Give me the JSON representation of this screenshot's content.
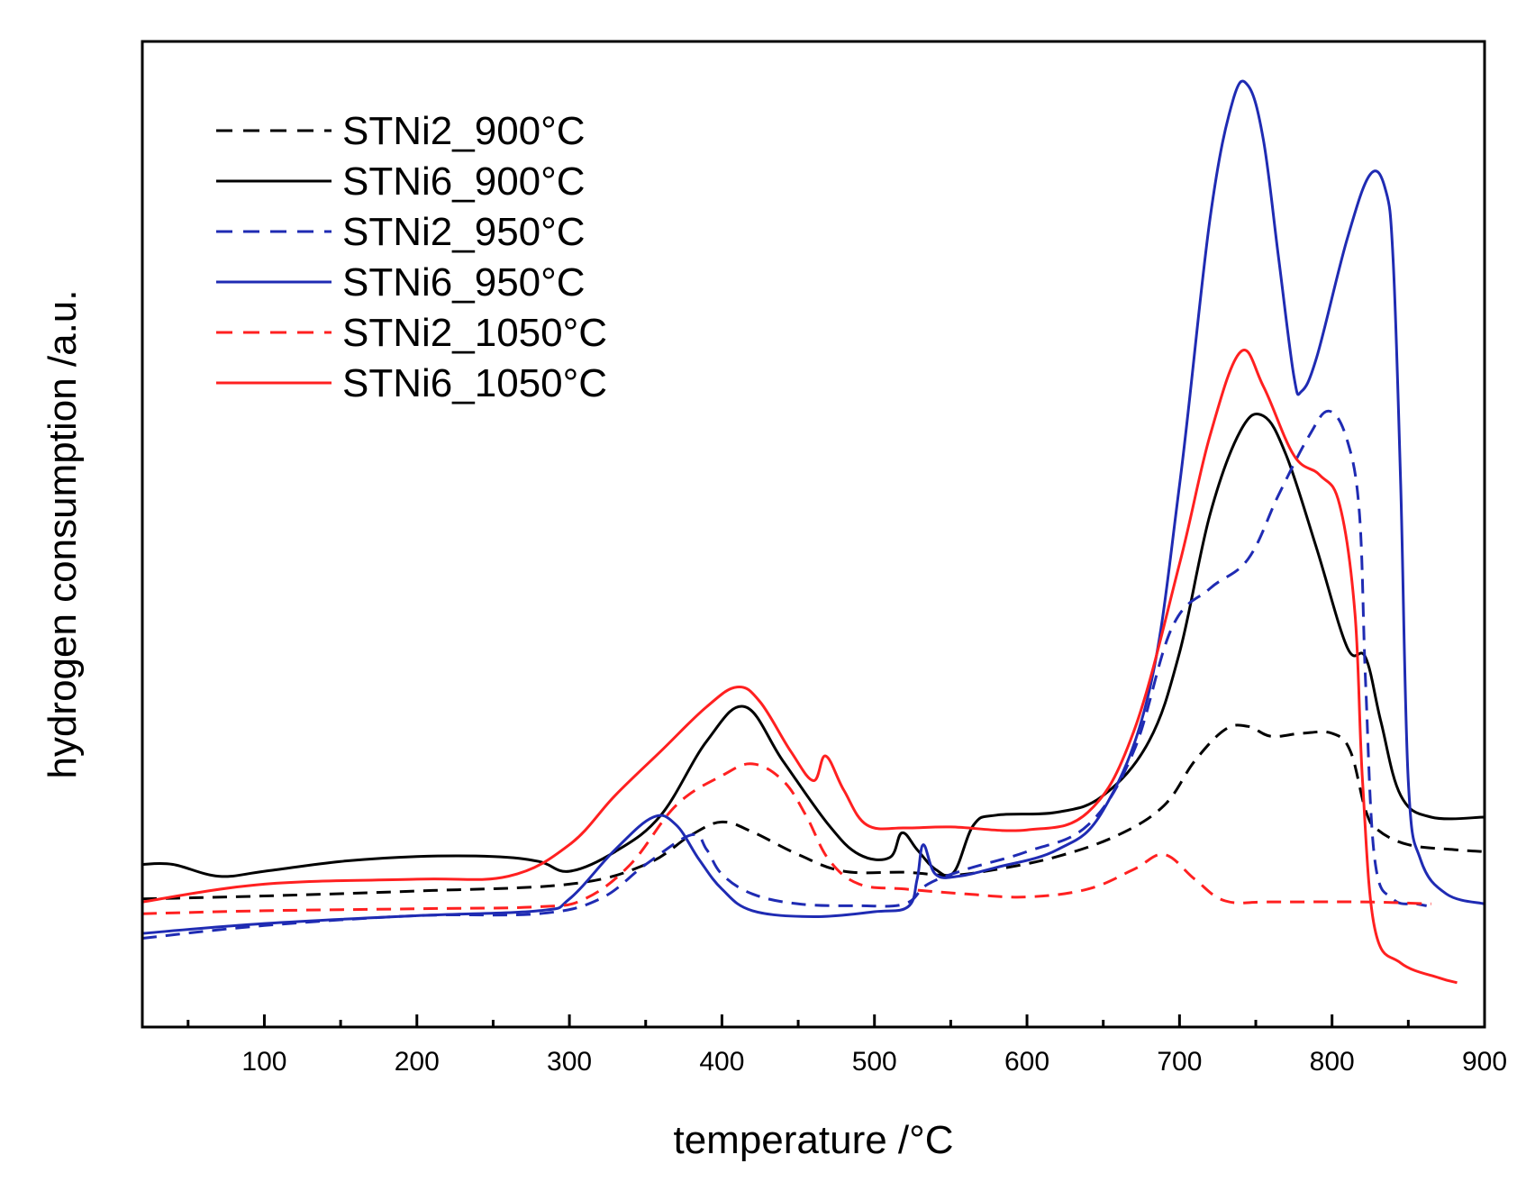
{
  "chart_data": {
    "type": "line",
    "title": "",
    "xlabel": "temperature /°C",
    "ylabel": "hydrogen consumption /a.u.",
    "xlim": [
      20,
      900
    ],
    "ylim": [
      0,
      100
    ],
    "xticks": [
      100,
      200,
      300,
      400,
      500,
      600,
      700,
      800,
      900
    ],
    "xticks_minor": [
      50,
      150,
      250,
      350,
      450,
      550,
      650,
      750,
      850
    ],
    "y_tick_labels": false,
    "grid": false,
    "legend_position": "top-left",
    "series": [
      {
        "name": "STNi2_900°C",
        "color": "#000000",
        "dash": "dashed",
        "points": [
          [
            20,
            13
          ],
          [
            100,
            13.3
          ],
          [
            200,
            13.8
          ],
          [
            300,
            14.5
          ],
          [
            350,
            16.5
          ],
          [
            380,
            19.5
          ],
          [
            400,
            20.8
          ],
          [
            420,
            19.8
          ],
          [
            450,
            17.5
          ],
          [
            480,
            15.8
          ],
          [
            520,
            15.7
          ],
          [
            550,
            15.4
          ],
          [
            580,
            16
          ],
          [
            620,
            17.3
          ],
          [
            660,
            19.5
          ],
          [
            690,
            22.5
          ],
          [
            710,
            27
          ],
          [
            730,
            30.2
          ],
          [
            745,
            30.5
          ],
          [
            760,
            29.5
          ],
          [
            780,
            29.8
          ],
          [
            800,
            29.8
          ],
          [
            812,
            28
          ],
          [
            822,
            22
          ],
          [
            830,
            20
          ],
          [
            850,
            18.5
          ],
          [
            880,
            18
          ],
          [
            900,
            17.8
          ]
        ]
      },
      {
        "name": "STNi6_900°C",
        "color": "#000000",
        "dash": "solid",
        "points": [
          [
            20,
            16.5
          ],
          [
            40,
            16.5
          ],
          [
            70,
            15.3
          ],
          [
            100,
            15.8
          ],
          [
            150,
            16.8
          ],
          [
            200,
            17.3
          ],
          [
            250,
            17.3
          ],
          [
            280,
            16.8
          ],
          [
            300,
            15.8
          ],
          [
            330,
            17.8
          ],
          [
            360,
            21.5
          ],
          [
            390,
            29
          ],
          [
            415,
            32.5
          ],
          [
            440,
            27
          ],
          [
            470,
            20.5
          ],
          [
            490,
            17.5
          ],
          [
            510,
            17.2
          ],
          [
            518,
            19.7
          ],
          [
            528,
            18
          ],
          [
            540,
            16
          ],
          [
            552,
            15.7
          ],
          [
            565,
            20.5
          ],
          [
            580,
            21.5
          ],
          [
            620,
            21.8
          ],
          [
            650,
            23.5
          ],
          [
            680,
            29
          ],
          [
            700,
            38
          ],
          [
            720,
            52
          ],
          [
            740,
            60.5
          ],
          [
            755,
            62
          ],
          [
            770,
            58
          ],
          [
            790,
            48.5
          ],
          [
            810,
            38.5
          ],
          [
            822,
            37.5
          ],
          [
            832,
            31
          ],
          [
            845,
            23.5
          ],
          [
            865,
            21.3
          ],
          [
            900,
            21.3
          ]
        ]
      },
      {
        "name": "STNi2_950°C",
        "color": "#1f2bb3",
        "dash": "dashed",
        "points": [
          [
            20,
            9
          ],
          [
            100,
            10.3
          ],
          [
            200,
            11.3
          ],
          [
            280,
            11.5
          ],
          [
            320,
            13
          ],
          [
            350,
            16.5
          ],
          [
            380,
            19.5
          ],
          [
            390,
            18
          ],
          [
            400,
            15.5
          ],
          [
            420,
            13.5
          ],
          [
            450,
            12.5
          ],
          [
            490,
            12.3
          ],
          [
            520,
            12.5
          ],
          [
            535,
            14.5
          ],
          [
            560,
            16
          ],
          [
            600,
            17.8
          ],
          [
            640,
            20.5
          ],
          [
            670,
            28
          ],
          [
            695,
            40.5
          ],
          [
            720,
            44.5
          ],
          [
            745,
            47.5
          ],
          [
            765,
            54
          ],
          [
            785,
            60
          ],
          [
            798,
            62.5
          ],
          [
            810,
            59.5
          ],
          [
            818,
            52
          ],
          [
            822,
            35
          ],
          [
            828,
            17
          ],
          [
            840,
            13
          ],
          [
            855,
            12.5
          ],
          [
            862,
            12.3
          ]
        ]
      },
      {
        "name": "STNi6_950°C",
        "color": "#1f2bb3",
        "dash": "solid",
        "points": [
          [
            20,
            9.5
          ],
          [
            100,
            10.5
          ],
          [
            200,
            11.3
          ],
          [
            280,
            11.8
          ],
          [
            300,
            13
          ],
          [
            330,
            18
          ],
          [
            355,
            21.3
          ],
          [
            370,
            20.5
          ],
          [
            385,
            17
          ],
          [
            400,
            14
          ],
          [
            420,
            11.8
          ],
          [
            460,
            11.2
          ],
          [
            500,
            11.7
          ],
          [
            522,
            12.2
          ],
          [
            528,
            15
          ],
          [
            532,
            18.5
          ],
          [
            540,
            15.5
          ],
          [
            555,
            15.3
          ],
          [
            580,
            16.2
          ],
          [
            620,
            18
          ],
          [
            650,
            22
          ],
          [
            680,
            34
          ],
          [
            700,
            55
          ],
          [
            720,
            82
          ],
          [
            735,
            94
          ],
          [
            745,
            95.5
          ],
          [
            755,
            90
          ],
          [
            765,
            78
          ],
          [
            775,
            66
          ],
          [
            780,
            64.5
          ],
          [
            790,
            68
          ],
          [
            810,
            80
          ],
          [
            825,
            86.5
          ],
          [
            835,
            85
          ],
          [
            840,
            78
          ],
          [
            845,
            55
          ],
          [
            850,
            25
          ],
          [
            858,
            17
          ],
          [
            875,
            13.5
          ],
          [
            900,
            12.5
          ]
        ]
      },
      {
        "name": "STNi2_1050°C",
        "color": "#ff2020",
        "dash": "dashed",
        "points": [
          [
            20,
            11.5
          ],
          [
            100,
            11.8
          ],
          [
            200,
            12
          ],
          [
            280,
            12.2
          ],
          [
            310,
            13
          ],
          [
            340,
            16.5
          ],
          [
            370,
            22.5
          ],
          [
            400,
            25.5
          ],
          [
            420,
            26.7
          ],
          [
            440,
            25
          ],
          [
            455,
            21.5
          ],
          [
            470,
            17
          ],
          [
            490,
            14.5
          ],
          [
            520,
            14
          ],
          [
            560,
            13.5
          ],
          [
            600,
            13.2
          ],
          [
            640,
            14
          ],
          [
            670,
            16
          ],
          [
            690,
            17.5
          ],
          [
            710,
            15
          ],
          [
            730,
            12.8
          ],
          [
            760,
            12.7
          ],
          [
            820,
            12.7
          ],
          [
            865,
            12.5
          ]
        ]
      },
      {
        "name": "STNi6_1050°C",
        "color": "#ff2020",
        "dash": "solid",
        "points": [
          [
            20,
            12.7
          ],
          [
            100,
            14.5
          ],
          [
            200,
            15
          ],
          [
            260,
            15.3
          ],
          [
            300,
            18.5
          ],
          [
            330,
            23.5
          ],
          [
            360,
            28
          ],
          [
            390,
            32.5
          ],
          [
            410,
            34.5
          ],
          [
            425,
            33
          ],
          [
            445,
            28
          ],
          [
            460,
            25
          ],
          [
            468,
            27.5
          ],
          [
            480,
            24
          ],
          [
            495,
            20.5
          ],
          [
            520,
            20.2
          ],
          [
            550,
            20.3
          ],
          [
            600,
            20
          ],
          [
            640,
            21.8
          ],
          [
            670,
            30
          ],
          [
            700,
            47
          ],
          [
            720,
            60
          ],
          [
            740,
            68.5
          ],
          [
            755,
            65
          ],
          [
            775,
            58
          ],
          [
            792,
            56
          ],
          [
            805,
            53
          ],
          [
            815,
            42
          ],
          [
            820,
            25
          ],
          [
            828,
            10
          ],
          [
            845,
            6.5
          ],
          [
            870,
            5
          ],
          [
            882,
            4.5
          ]
        ]
      }
    ]
  }
}
